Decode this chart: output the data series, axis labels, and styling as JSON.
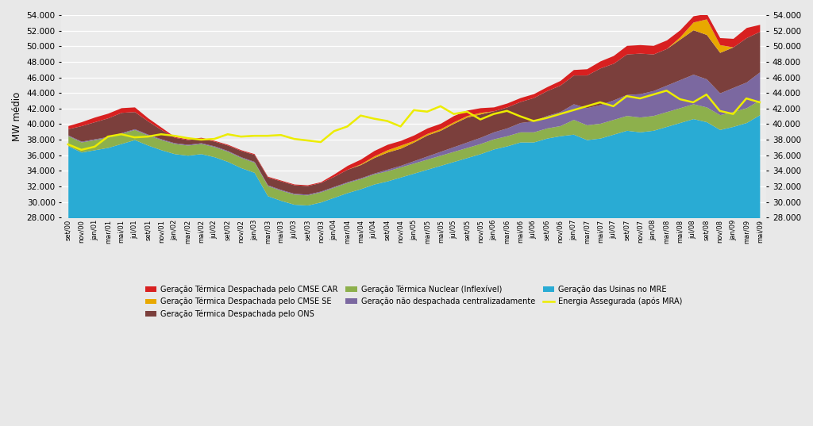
{
  "title": "",
  "ylabel": "MW médio",
  "ylim": [
    28000,
    54000
  ],
  "yticks": [
    28000,
    30000,
    32000,
    34000,
    36000,
    38000,
    40000,
    42000,
    44000,
    46000,
    48000,
    50000,
    52000,
    54000
  ],
  "x_labels": [
    "set/00",
    "nov/00",
    "jan/01",
    "mar/01",
    "mai/01",
    "jul/01",
    "set/01",
    "nov/01",
    "jan/02",
    "mar/02",
    "mai/02",
    "jul/02",
    "set/02",
    "nov/02",
    "jan/03",
    "mar/03",
    "mai/03",
    "jul/03",
    "set/03",
    "nov/03",
    "jan/04",
    "mar/04",
    "mai/04",
    "jul/04",
    "set/04",
    "nov/04",
    "jan/05",
    "mar/05",
    "mai/05",
    "jul/05",
    "set/05",
    "nov/05",
    "jan/06",
    "mar/06",
    "mai/06",
    "jul/06",
    "set/06",
    "nov/06",
    "jan/07",
    "mar/07",
    "mai/07",
    "jul/07",
    "set/07",
    "nov/07",
    "jan/08",
    "mar/08",
    "mai/08",
    "jul/08",
    "set/08",
    "nov/08",
    "jan/09",
    "mar/09",
    "mai/09"
  ],
  "colors": {
    "MRE": "#29ABD4",
    "nao_despachada": "#7B68A0",
    "nuclear": "#8DB04C",
    "ONS": "#7B3F3C",
    "CMSE_SE": "#E8A800",
    "CMSE_CAR": "#D82020",
    "energia_assegurada": "#ECEC00"
  },
  "legend_labels": [
    "Geração Térmica Despachada pelo CMSE CAR",
    "Geração Térmica Despachada pelo CMSE SE",
    "Geração Térmica Despachada pelo ONS",
    "Geração Térmica Nuclear (Inflexível)",
    "Geração não despachada centralizadamente",
    "Geração das Usinas no MRE",
    "Energia Assegurada (após MRA)"
  ],
  "MRE": [
    37200,
    36400,
    36700,
    37000,
    37500,
    38000,
    37300,
    36700,
    36200,
    36000,
    36200,
    35800,
    35200,
    34400,
    33800,
    30800,
    30200,
    29700,
    29600,
    30000,
    30600,
    31200,
    31700,
    32300,
    32700,
    33200,
    33700,
    34200,
    34700,
    35200,
    35700,
    36200,
    36800,
    37200,
    37700,
    37700,
    38200,
    38500,
    38700,
    38000,
    38200,
    38700,
    39200,
    39000,
    39200,
    39700,
    40200,
    40700,
    40300,
    39300,
    39700,
    40200,
    41200
  ],
  "nuclear": [
    1300,
    1300,
    1300,
    1300,
    1300,
    1300,
    1300,
    1300,
    1300,
    1300,
    1300,
    1300,
    1300,
    1300,
    1300,
    1300,
    1300,
    1300,
    1300,
    1300,
    1300,
    1300,
    1300,
    1300,
    1300,
    1300,
    1300,
    1300,
    1300,
    1300,
    1300,
    1300,
    1300,
    1300,
    1300,
    1300,
    1300,
    1300,
    1900,
    1900,
    1900,
    1900,
    1900,
    1900,
    1900,
    1900,
    1900,
    1900,
    1900,
    1900,
    1900,
    1900,
    1900
  ],
  "nao_despachada": [
    100,
    100,
    100,
    100,
    100,
    100,
    100,
    100,
    100,
    100,
    100,
    100,
    100,
    100,
    100,
    100,
    100,
    100,
    100,
    100,
    100,
    100,
    100,
    100,
    200,
    200,
    300,
    400,
    500,
    600,
    700,
    800,
    900,
    1000,
    1200,
    1400,
    1600,
    1800,
    2000,
    2200,
    2400,
    2500,
    2700,
    3000,
    3200,
    3400,
    3600,
    3800,
    3600,
    2800,
    3100,
    3300,
    3600
  ],
  "ONS": [
    800,
    2000,
    2200,
    2400,
    2600,
    2200,
    1700,
    1200,
    700,
    600,
    600,
    600,
    700,
    800,
    900,
    1000,
    1100,
    1100,
    1100,
    1100,
    1300,
    1600,
    1700,
    2000,
    2200,
    2200,
    2400,
    2700,
    2700,
    3000,
    3200,
    3000,
    2700,
    2700,
    2700,
    3000,
    3200,
    3400,
    3700,
    4200,
    4700,
    4700,
    5200,
    5200,
    4700,
    4700,
    5200,
    5700,
    5700,
    5200,
    5200,
    5700,
    5200
  ],
  "CMSE_SE": [
    0,
    0,
    0,
    0,
    0,
    0,
    0,
    0,
    0,
    0,
    0,
    0,
    0,
    0,
    0,
    0,
    0,
    0,
    0,
    0,
    0,
    0,
    100,
    200,
    300,
    400,
    200,
    200,
    200,
    200,
    200,
    200,
    0,
    0,
    0,
    0,
    0,
    0,
    0,
    0,
    0,
    0,
    0,
    0,
    0,
    0,
    300,
    1000,
    2000,
    1000,
    0,
    0,
    0
  ],
  "CMSE_CAR": [
    400,
    500,
    600,
    600,
    600,
    600,
    400,
    300,
    100,
    100,
    100,
    100,
    100,
    100,
    100,
    100,
    100,
    100,
    100,
    100,
    300,
    500,
    600,
    700,
    700,
    600,
    700,
    700,
    700,
    800,
    700,
    600,
    500,
    500,
    500,
    500,
    500,
    600,
    700,
    800,
    900,
    1000,
    1100,
    1100,
    1100,
    1100,
    900,
    800,
    700,
    900,
    1100,
    1300,
    900
  ],
  "energia_assegurada": [
    37400,
    36700,
    37100,
    38400,
    38700,
    38300,
    38400,
    38700,
    38500,
    38200,
    38000,
    38100,
    38700,
    38400,
    38500,
    38500,
    38600,
    38100,
    37900,
    37700,
    39100,
    39700,
    41100,
    40700,
    40400,
    39700,
    41800,
    41600,
    42300,
    41300,
    41600,
    40600,
    41300,
    41700,
    41000,
    40400,
    40800,
    41300,
    41800,
    42300,
    42800,
    42300,
    43600,
    43300,
    43800,
    44300,
    43200,
    42800,
    43800,
    41700,
    41300,
    43300,
    42800
  ],
  "background_color": "#E8E8E8",
  "plot_bg_color": "#EBEBEB"
}
